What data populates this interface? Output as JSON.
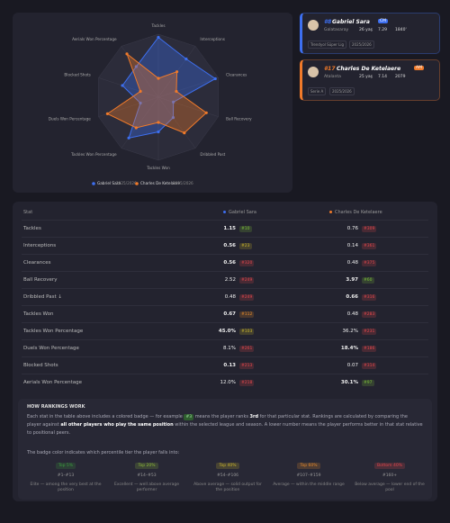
{
  "chart_data": {
    "type": "radar",
    "axes": [
      "Tackles",
      "Interceptions",
      "Clearances",
      "Ball Recovery",
      "Dribbled Past",
      "Tackles Won",
      "Tackles Won Percentage",
      "Duels Won Percentage",
      "Blocked Shots",
      "Aerials Won Percentage"
    ],
    "series": [
      {
        "name": "Gabriel Sara",
        "color": "#3d6ff0",
        "values": [
          95,
          75,
          95,
          25,
          40,
          55,
          80,
          30,
          60,
          60
        ]
      },
      {
        "name": "Charles De Ketelaere",
        "color": "#f07a2a",
        "values": [
          30,
          50,
          30,
          80,
          70,
          40,
          60,
          85,
          30,
          85
        ]
      }
    ],
    "rlim": [
      0,
      100
    ],
    "rticks": [
      20,
      40,
      60,
      80,
      100
    ],
    "grid": true,
    "season": "2025/2026"
  },
  "players": [
    {
      "number": "#8",
      "name": "Gabriel Sara",
      "position": "CM",
      "color": "#3d6ff0",
      "club": "Galatasaray",
      "age": "26 yaş",
      "rating": "7.29",
      "minutes": "1840'",
      "tags": [
        "Trendyol Süper Lig",
        "2025/2026"
      ]
    },
    {
      "number": "#17",
      "name": "Charles De Ketelaere",
      "position": "AM",
      "color": "#f07a2a",
      "club": "Atalanta",
      "age": "25 yaş",
      "rating": "7.14",
      "minutes": "2079",
      "tags": [
        "Serie A",
        "2025/2026"
      ]
    }
  ],
  "table": {
    "header": [
      "Stat",
      "Gabriel Sara",
      "Charles De Ketelaere"
    ],
    "rows": [
      [
        "Tackles",
        "1.15",
        {
          "badge": "#10",
          "color": "#7bbf3a"
        },
        "0.76",
        {
          "badge": "#309",
          "color": "#e0474c"
        }
      ],
      [
        "Interceptions",
        "0.56",
        {
          "badge": "#23",
          "color": "#c9b52d"
        },
        "0.14",
        {
          "badge": "#361",
          "color": "#e0474c"
        }
      ],
      [
        "Clearances",
        "0.56",
        {
          "badge": "#320",
          "color": "#e0474c"
        },
        "0.48",
        {
          "badge": "#375",
          "color": "#e0474c"
        }
      ],
      [
        "Ball Recovery",
        "2.52",
        {
          "badge": "#249",
          "color": "#e0474c"
        },
        "3.97",
        {
          "badge": "#60",
          "color": "#7bbf3a"
        }
      ],
      [
        "Dribbled Past ↓",
        "0.48",
        {
          "badge": "#249",
          "color": "#e0474c"
        },
        "0.66",
        {
          "badge": "#316",
          "color": "#e0474c"
        }
      ],
      [
        "Tackles Won",
        "0.67",
        {
          "badge": "#112",
          "color": "#e58a2c"
        },
        "0.48",
        {
          "badge": "#283",
          "color": "#e0474c"
        }
      ],
      [
        "Tackles Won Percentage",
        "45.0%",
        {
          "badge": "#103",
          "color": "#c9b52d"
        },
        "36.2%",
        {
          "badge": "#231",
          "color": "#e0474c"
        }
      ],
      [
        "Duels Won Percentage",
        "8.1%",
        {
          "badge": "#261",
          "color": "#e0474c"
        },
        "18.4%",
        {
          "badge": "#186",
          "color": "#e0474c"
        }
      ],
      [
        "Blocked Shots",
        "0.13",
        {
          "badge": "#213",
          "color": "#e0474c"
        },
        "0.07",
        {
          "badge": "#314",
          "color": "#e0474c"
        }
      ],
      [
        "Aerials Won Percentage",
        "12.0%",
        {
          "badge": "#218",
          "color": "#e0474c"
        },
        "30.1%",
        {
          "badge": "#97",
          "color": "#7bbf3a"
        }
      ]
    ]
  },
  "rankings": {
    "title": "HOW RANKINGS WORK",
    "paragraph": [
      "Each stat in the table above includes a colored badge — for example",
      "#3",
      "means the player ranks",
      "3rd",
      "for that particular stat. Rankings are calculated by comparing the player against",
      "all other players who play the same position",
      "within the selected league and season. A lower number means the player performs better in that stat relative to positional peers."
    ],
    "tier_intro": "The badge color indicates which percentile tier the player falls into:",
    "tiers": [
      {
        "label": "Top 5%",
        "range": "#1–#13",
        "text": "Elite — among the very best at the position",
        "color": "#3a9a3e"
      },
      {
        "label": "Top 20%",
        "range": "#14–#53",
        "text": "Excellent — well above average performer",
        "color": "#8db83a"
      },
      {
        "label": "Top 40%",
        "range": "#54–#106",
        "text": "Above average — solid output for the position",
        "color": "#c9b52d"
      },
      {
        "label": "Top 60%",
        "range": "#107–#159",
        "text": "Average — within the middle range",
        "color": "#e58a2c"
      },
      {
        "label": "Bottom 40%",
        "range": "#160+",
        "text": "Below average — lower end of the pool",
        "color": "#e0474c"
      }
    ]
  }
}
